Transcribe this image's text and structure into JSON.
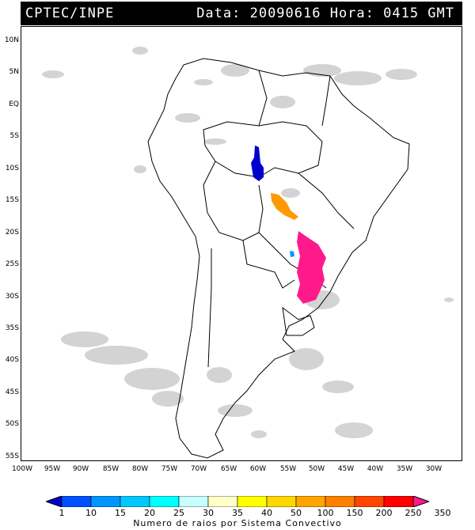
{
  "header": {
    "org": "CPTEC/INPE",
    "datetime": "Data: 20090616 Hora: 0415 GMT"
  },
  "map": {
    "lat_labels": [
      "10N",
      "5N",
      "EQ",
      "5S",
      "10S",
      "15S",
      "20S",
      "25S",
      "30S",
      "35S",
      "40S",
      "45S",
      "50S",
      "55S"
    ],
    "lon_labels": [
      "100W",
      "95W",
      "90W",
      "85W",
      "80W",
      "75W",
      "70W",
      "65W",
      "60W",
      "55W",
      "50W",
      "45W",
      "40W",
      "35W",
      "30W"
    ]
  },
  "legend": {
    "title": "Numero de raios por Sistema Convectivo",
    "values": [
      "1",
      "10",
      "15",
      "20",
      "25",
      "30",
      "35",
      "40",
      "50",
      "100",
      "150",
      "200",
      "250",
      "350"
    ],
    "colors": [
      "#0000cc",
      "#0050ff",
      "#0096ff",
      "#00c8ff",
      "#00ffff",
      "#c8ffff",
      "#ffffc8",
      "#ffff00",
      "#ffd700",
      "#ffa500",
      "#ff7f00",
      "#ff4500",
      "#ff0000",
      "#ff1a8c"
    ]
  }
}
